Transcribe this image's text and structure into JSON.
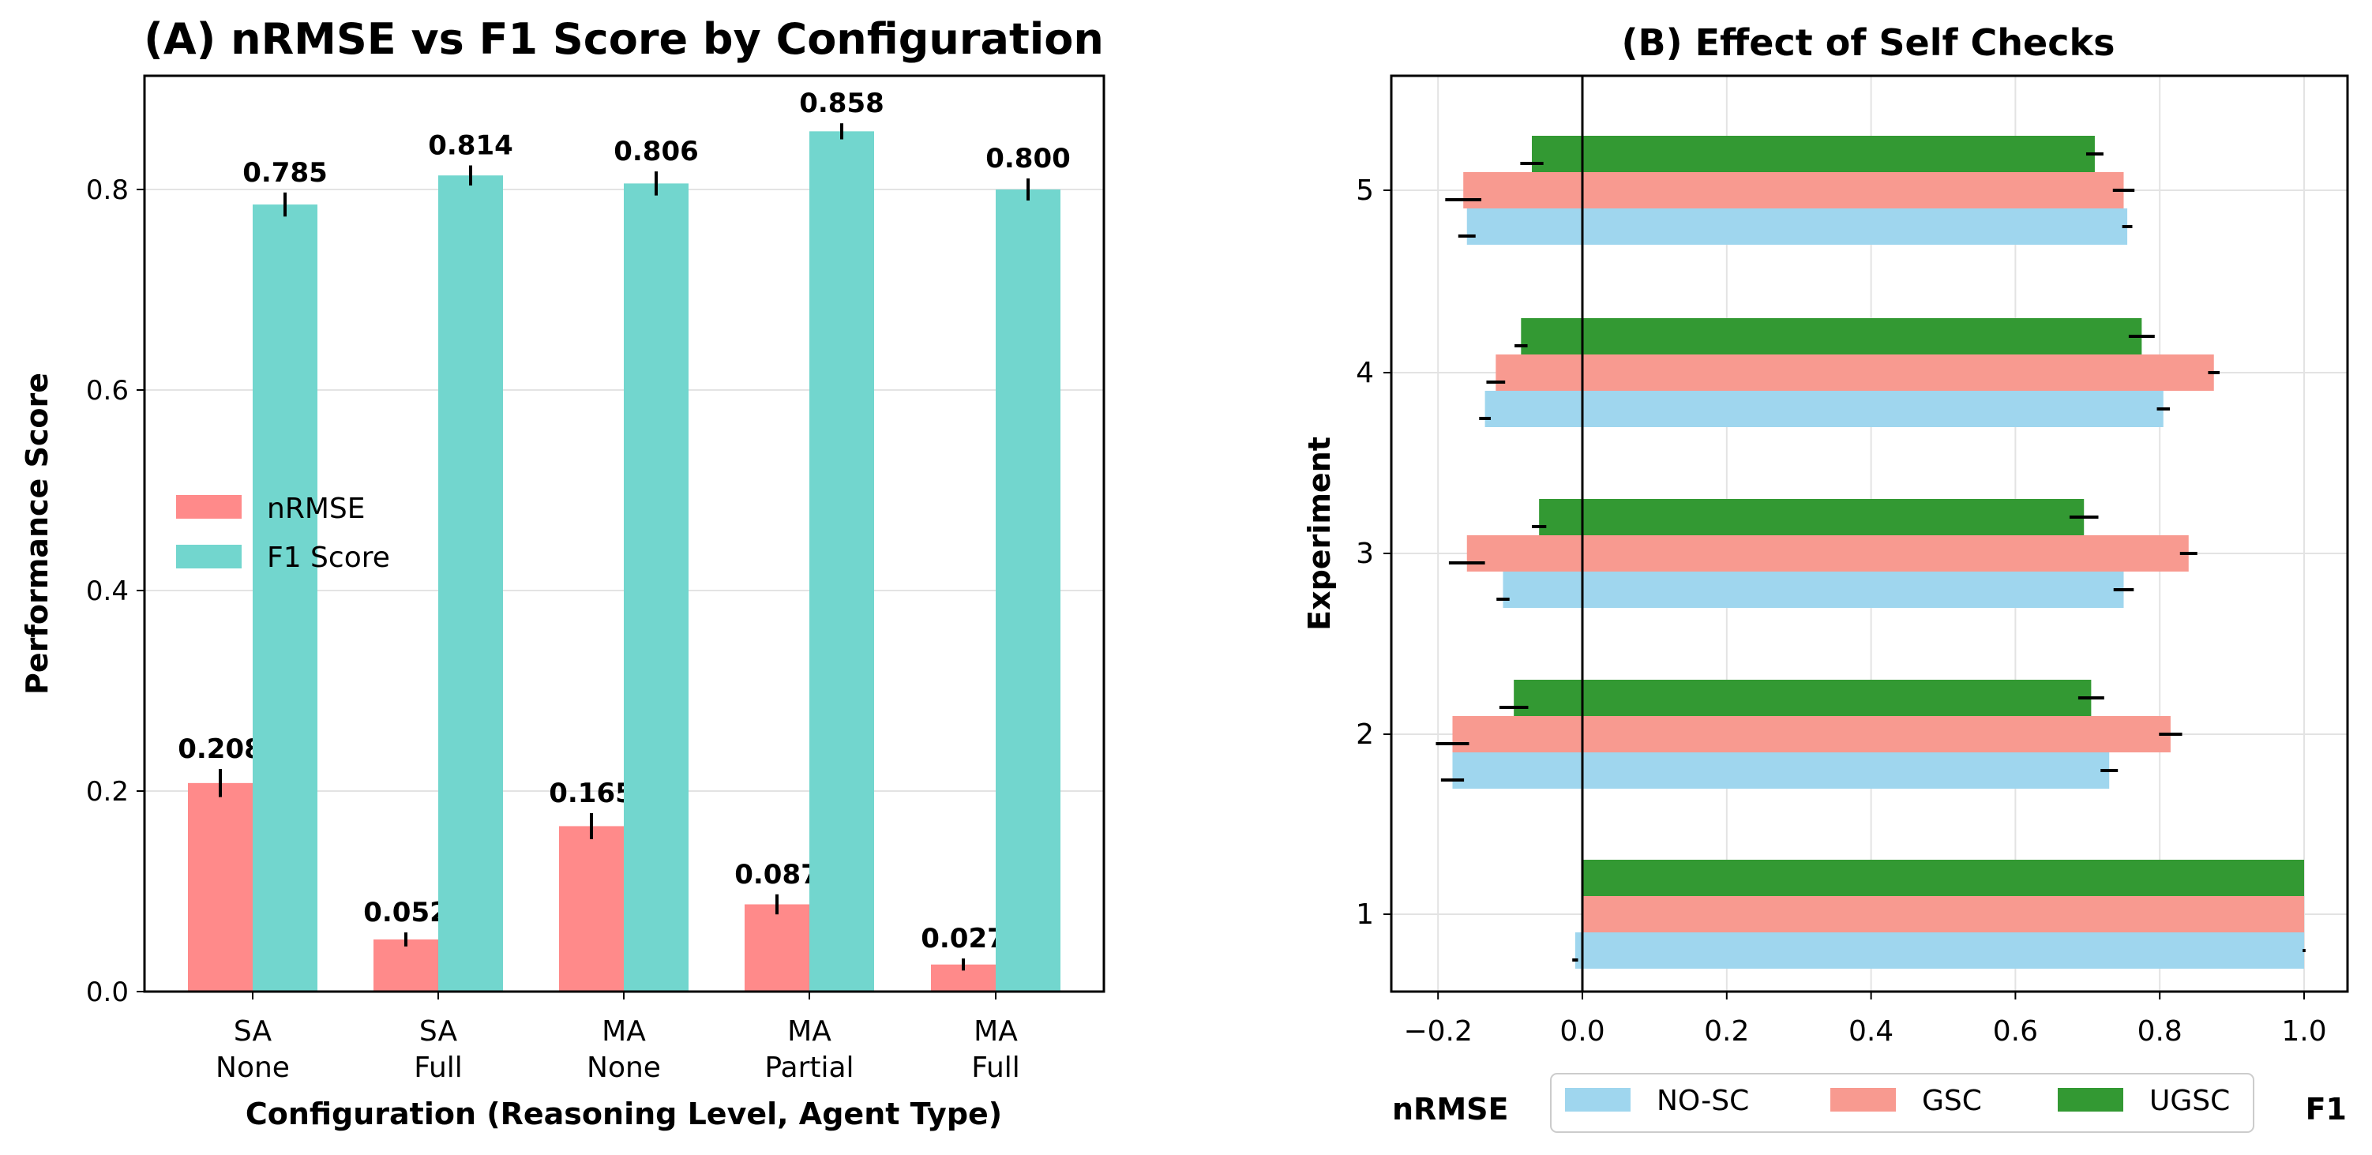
{
  "chart_data": [
    {
      "type": "bar",
      "title": "(A) nRMSE vs F1 Score by Configuration",
      "xlabel": "Configuration (Reasoning Level, Agent Type)",
      "ylabel": "Performance Score",
      "ylim": [
        0,
        0.91
      ],
      "yticks": [
        "0.0",
        "0.2",
        "0.4",
        "0.6",
        "0.8"
      ],
      "grid": true,
      "legend_position": "center-left",
      "categories": [
        [
          "SA",
          "None"
        ],
        [
          "SA",
          "Full"
        ],
        [
          "MA",
          "None"
        ],
        [
          "MA",
          "Partial"
        ],
        [
          "MA",
          "Full"
        ]
      ],
      "series": [
        {
          "name": "nRMSE",
          "color": "#ff8a8a",
          "values": [
            0.208,
            0.052,
            0.165,
            0.087,
            0.027
          ],
          "errors": [
            0.014,
            0.007,
            0.013,
            0.01,
            0.006
          ],
          "labels": [
            "0.208",
            "0.052",
            "0.165",
            "0.087",
            "0.027"
          ]
        },
        {
          "name": "F1 Score",
          "color": "#72d6ce",
          "values": [
            0.785,
            0.814,
            0.806,
            0.858,
            0.8
          ],
          "errors": [
            0.012,
            0.01,
            0.012,
            0.008,
            0.011
          ],
          "labels": [
            "0.785",
            "0.814",
            "0.806",
            "0.858",
            "0.800"
          ]
        }
      ]
    },
    {
      "type": "bar",
      "orientation": "horizontal",
      "title": "(B) Effect of Self Checks",
      "ylabel": "Experiment",
      "xlim": [
        -0.265,
        1.06
      ],
      "xticks": [
        "−0.2",
        "0.0",
        "0.2",
        "0.4",
        "0.6",
        "0.8",
        "1.0"
      ],
      "xtick_values": [
        -0.2,
        0,
        0.2,
        0.4,
        0.6,
        0.8,
        1.0
      ],
      "left_label": "nRMSE",
      "right_label": "F1",
      "grid": true,
      "legend_position": "bottom-center",
      "categories": [
        "1",
        "2",
        "3",
        "4",
        "5"
      ],
      "series": [
        {
          "name": "NO-SC",
          "color": "#9fd6ee",
          "nrmse": [
            -0.01,
            -0.18,
            -0.11,
            -0.135,
            -0.16
          ],
          "nrmse_err": [
            0.004,
            0.016,
            0.009,
            0.008,
            0.012
          ],
          "f1": [
            1.0,
            0.73,
            0.75,
            0.805,
            0.755
          ],
          "f1_err": [
            0.002,
            0.012,
            0.014,
            0.009,
            0.007
          ]
        },
        {
          "name": "GSC",
          "color": "#f89a90",
          "nrmse": [
            0.0,
            -0.18,
            -0.16,
            -0.12,
            -0.165
          ],
          "nrmse_err": [
            0,
            0.023,
            0.025,
            0.013,
            0.025
          ],
          "f1": [
            1.0,
            0.815,
            0.84,
            0.875,
            0.75
          ],
          "f1_err": [
            0,
            0.016,
            0.012,
            0.008,
            0.015
          ],
          "nrmse_err_center": [
            0,
            -0.18,
            -0.16,
            -0.12,
            -0.165
          ]
        },
        {
          "name": "UGSC",
          "color": "#339933",
          "nrmse": [
            0.0,
            -0.095,
            -0.06,
            -0.085,
            -0.07
          ],
          "nrmse_err": [
            0,
            0.02,
            0.01,
            0.009,
            0.016
          ],
          "f1": [
            1.0,
            0.705,
            0.695,
            0.775,
            0.71
          ],
          "f1_err": [
            0,
            0.018,
            0.02,
            0.018,
            0.012
          ],
          "nrmse_err_center": [
            0,
            -0.1,
            -0.06,
            -0.085,
            -0.075
          ]
        }
      ]
    }
  ]
}
